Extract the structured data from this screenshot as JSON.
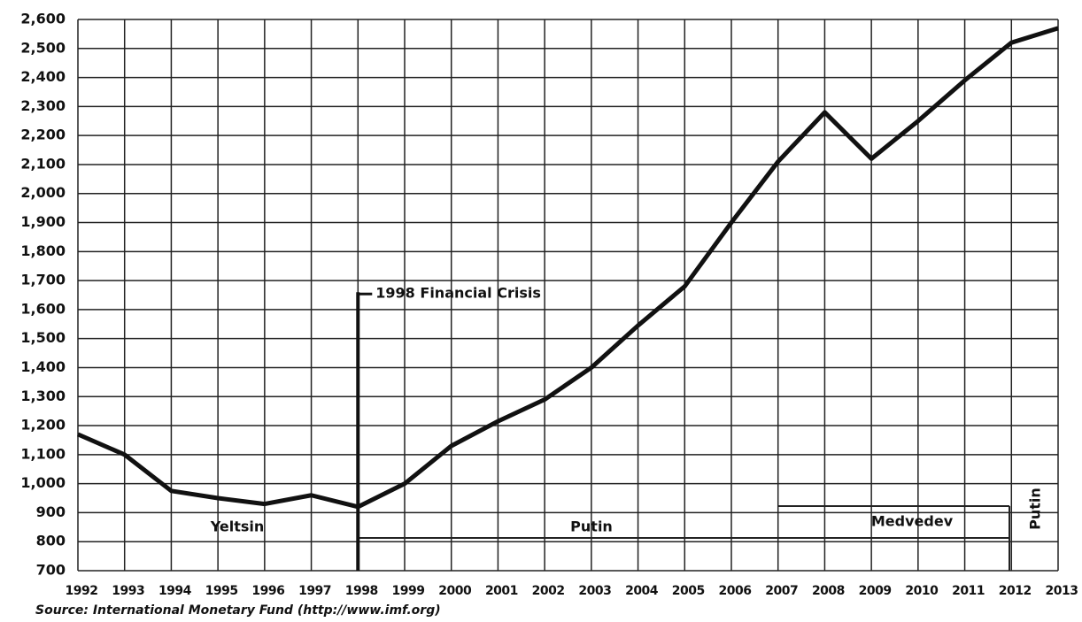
{
  "chart_data": {
    "type": "line",
    "categories": [
      "1992",
      "1993",
      "1994",
      "1995",
      "1996",
      "1997",
      "1998",
      "1999",
      "2000",
      "2001",
      "2002",
      "2003",
      "2004",
      "2005",
      "2006",
      "2007",
      "2008",
      "2009",
      "2010",
      "2011",
      "2012",
      "2013"
    ],
    "values": [
      1170,
      1100,
      975,
      950,
      930,
      960,
      920,
      1000,
      1130,
      1215,
      1290,
      1400,
      1545,
      1680,
      1900,
      2110,
      2280,
      2120,
      2250,
      2390,
      2520,
      2570
    ],
    "color": "#111111",
    "ylim": [
      700,
      2600
    ],
    "yticks": [
      700,
      800,
      900,
      {
        "value": 1000,
        "label": "1,000"
      },
      {
        "value": 1100,
        "label": "1,100"
      },
      {
        "value": 1200,
        "label": "1,200"
      },
      {
        "value": 1300,
        "label": "1,300"
      },
      {
        "value": 1400,
        "label": "1,400"
      },
      {
        "value": 1500,
        "label": "1,500"
      },
      {
        "value": 1600,
        "label": "1,600"
      },
      {
        "value": 1700,
        "label": "1,700"
      },
      {
        "value": 1800,
        "label": "1,800"
      },
      {
        "value": 1900,
        "label": "1,900"
      },
      {
        "value": 2000,
        "label": "2,000"
      },
      {
        "value": 2100,
        "label": "2,100"
      },
      {
        "value": 2200,
        "label": "2,200"
      },
      {
        "value": 2300,
        "label": "2,300"
      },
      {
        "value": 2400,
        "label": "2,400"
      },
      {
        "value": 2500,
        "label": "2,500"
      },
      {
        "value": 2600,
        "label": "2,600"
      }
    ],
    "grid": true,
    "annotation": "1998 Financial Crisis",
    "eras": [
      "Yeltsin",
      "Putin",
      "Medvedev",
      "Putin"
    ],
    "source": "Source: International Monetary Fund (http://www.imf.org)"
  }
}
